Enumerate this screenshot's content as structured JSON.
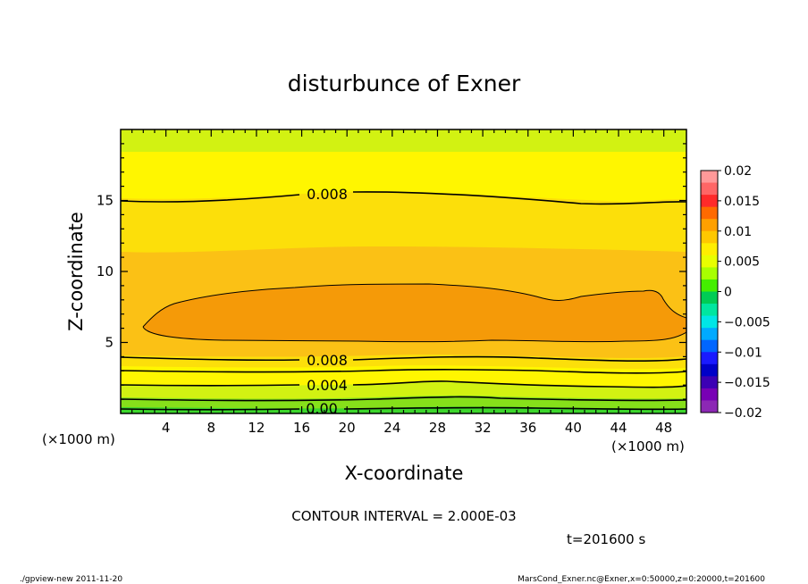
{
  "chart_data": {
    "type": "contour",
    "title": "disturbunce of Exner",
    "xlabel": "X-coordinate",
    "ylabel": "Z-coordinate",
    "x_unit_left": "(×1000 m)",
    "x_unit_right": "(×1000 m)",
    "xlim": [
      0,
      50
    ],
    "ylim": [
      0,
      20
    ],
    "x_ticks": [
      4,
      8,
      12,
      16,
      20,
      24,
      28,
      32,
      36,
      40,
      44,
      48
    ],
    "y_ticks": [
      5,
      10,
      15
    ],
    "contour_interval": "CONTOUR INTERVAL = 2.000E-03",
    "time_label": "t=201600 s",
    "contour_labels": [
      {
        "text": "0.008",
        "x": 18,
        "z": 15.6
      },
      {
        "text": "0.008",
        "x": 18,
        "z": 3.7
      },
      {
        "text": "0.004",
        "x": 18,
        "z": 1.9
      },
      {
        "text": "0.00",
        "x": 18,
        "z": 0.3
      }
    ],
    "colorbar": {
      "labels": [
        "0.02",
        "0.015",
        "0.01",
        "0.005",
        "0",
        "−0.005",
        "−0.01",
        "−0.015",
        "−0.02"
      ],
      "colors": [
        "#ff9999",
        "#ff6666",
        "#ff2a2a",
        "#ff6a00",
        "#ffa000",
        "#ffc800",
        "#ffee00",
        "#e8ff00",
        "#a8ff00",
        "#44ee00",
        "#00cc55",
        "#00e6a0",
        "#00e6e6",
        "#00aaff",
        "#0066ff",
        "#1a1aff",
        "#0000c8",
        "#3c00b4",
        "#7800b4",
        "#8c28b4"
      ]
    },
    "bands": [
      {
        "value_range": "[0.010, 0.012)",
        "color": "#f59a08"
      },
      {
        "value_range": "[0.008, 0.010)",
        "color": "#fbc115"
      },
      {
        "value_range": "[0.006, 0.008)",
        "color": "#fcdf0a"
      },
      {
        "value_range": "[0.004, 0.006)",
        "color": "#fff600"
      },
      {
        "value_range": "[0.002, 0.004)",
        "color": "#d2f212"
      },
      {
        "value_range": "[0.000, 0.002)",
        "color": "#86e01a"
      },
      {
        "value_range": "< 0.000",
        "color": "#3cd62c"
      }
    ]
  },
  "footer": {
    "left": "./gpview-new   2011-11-20",
    "right": "MarsCond_Exner.nc@Exner,x=0:50000,z=0:20000,t=201600"
  }
}
